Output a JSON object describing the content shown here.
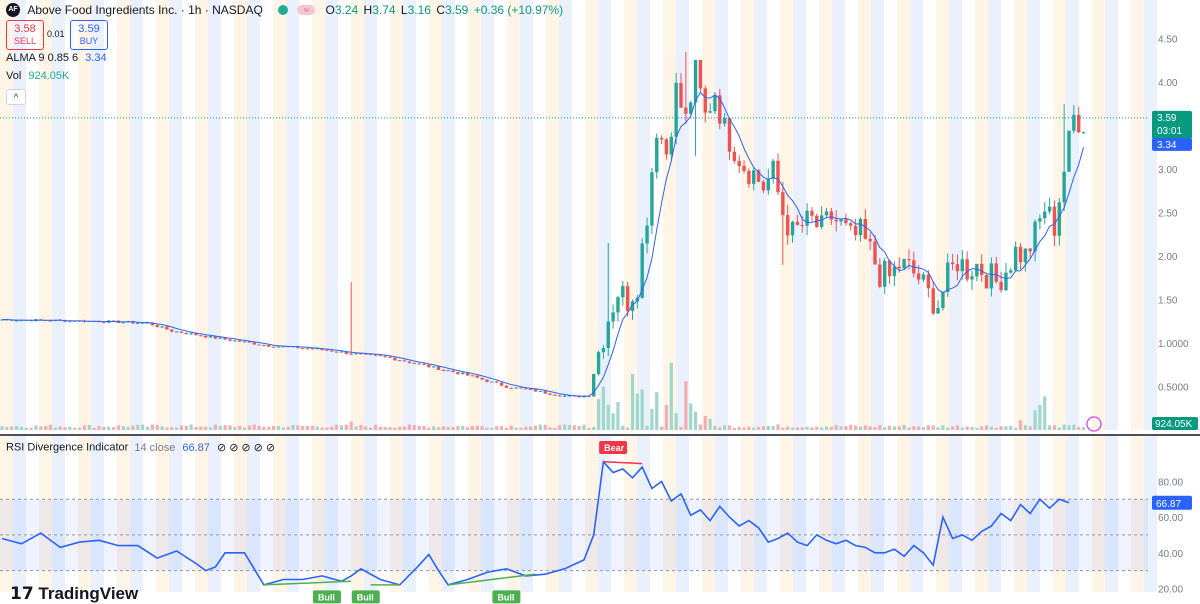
{
  "header": {
    "symbol_icon": "AF",
    "title": "Above Food Ingredients Inc. · 1h · NASDAQ",
    "ohlc": [
      {
        "label": "O",
        "value": "3.24"
      },
      {
        "label": "H",
        "value": "3.74"
      },
      {
        "label": "L",
        "value": "3.16"
      },
      {
        "label": "C",
        "value": "3.59"
      }
    ],
    "change": "+0.36 (+10.97%)"
  },
  "trade": {
    "sell_price": "3.58",
    "sell_label": "SELL",
    "spread": "0.01",
    "buy_price": "3.59",
    "buy_label": "BUY"
  },
  "indicators": {
    "alma_label": "ALMA 9 0.85 6",
    "alma_value": "3.34",
    "vol_label": "Vol",
    "vol_value": "924.05K",
    "rsi_label": "RSI Divergence Indicator",
    "rsi_params": "14 close",
    "rsi_value": "66.87"
  },
  "collapse_glyph": "^",
  "brand": "TradingView",
  "colors": {
    "up": "#26a69a",
    "down": "#ef5350",
    "alma": "#2962ff",
    "rsi": "#2962ff",
    "bull": "#4caf50",
    "bear": "#f23645"
  },
  "chart_data": [
    {
      "type": "candlestick",
      "title": "Above Food Ingredients Inc. · 1h · NASDAQ",
      "y_ticks": [
        "4.50",
        "4.00",
        "3.50",
        "3.00",
        "2.50",
        "2.00",
        "1.50",
        "1.0000",
        "0.5000"
      ],
      "ylim": [
        0.0,
        4.6
      ],
      "last_price": "3.59",
      "countdown": "03:01",
      "alma_last": "3.34",
      "volume_label": "924.05K",
      "trend": [
        [
          0,
          1.27
        ],
        [
          10,
          1.26
        ],
        [
          20,
          1.25
        ],
        [
          30,
          1.23
        ],
        [
          35,
          1.14
        ],
        [
          45,
          1.05
        ],
        [
          55,
          0.97
        ],
        [
          65,
          0.93
        ],
        [
          72,
          0.88
        ],
        [
          80,
          0.83
        ],
        [
          88,
          0.73
        ],
        [
          96,
          0.63
        ],
        [
          104,
          0.5
        ],
        [
          110,
          0.45
        ],
        [
          115,
          0.4
        ],
        [
          118,
          0.38
        ],
        [
          121,
          0.4
        ],
        [
          123,
          0.9
        ],
        [
          125,
          1.3
        ],
        [
          127,
          1.6
        ],
        [
          129,
          1.5
        ],
        [
          131,
          1.7
        ],
        [
          133,
          2.5
        ],
        [
          135,
          3.5
        ],
        [
          137,
          3.2
        ],
        [
          139,
          3.9
        ],
        [
          141,
          3.55
        ],
        [
          143,
          4.1
        ],
        [
          145,
          3.6
        ],
        [
          147,
          3.9
        ],
        [
          149,
          3.45
        ],
        [
          151,
          3.25
        ],
        [
          153,
          3.05
        ],
        [
          155,
          2.95
        ],
        [
          157,
          2.8
        ],
        [
          159,
          2.95
        ],
        [
          161,
          2.5
        ],
        [
          163,
          2.25
        ],
        [
          165,
          2.35
        ],
        [
          167,
          2.4
        ],
        [
          169,
          2.3
        ],
        [
          171,
          2.45
        ],
        [
          173,
          2.35
        ],
        [
          175,
          2.2
        ],
        [
          177,
          2.25
        ],
        [
          179,
          2.05
        ],
        [
          181,
          1.8
        ],
        [
          183,
          1.75
        ],
        [
          185,
          1.9
        ],
        [
          187,
          1.85
        ],
        [
          189,
          1.75
        ],
        [
          191,
          1.55
        ],
        [
          193,
          1.45
        ],
        [
          195,
          1.75
        ],
        [
          197,
          1.95
        ],
        [
          199,
          1.85
        ],
        [
          201,
          1.9
        ],
        [
          203,
          1.8
        ],
        [
          205,
          1.7
        ],
        [
          207,
          1.85
        ],
        [
          209,
          2.05
        ],
        [
          211,
          2.0
        ],
        [
          213,
          2.25
        ],
        [
          215,
          2.55
        ],
        [
          217,
          2.35
        ],
        [
          219,
          3.0
        ],
        [
          221,
          3.6
        ],
        [
          223,
          3.55
        ]
      ],
      "spikes": [
        [
          72,
          1.7
        ],
        [
          125,
          2.15
        ],
        [
          141,
          4.35
        ],
        [
          143,
          3.15
        ],
        [
          161,
          1.9
        ],
        [
          193,
          1.35
        ],
        [
          219,
          3.75
        ]
      ],
      "volume": [
        [
          72,
          0.6
        ],
        [
          123,
          2.2
        ],
        [
          124,
          3.1
        ],
        [
          125,
          1.8
        ],
        [
          126,
          1.2
        ],
        [
          127,
          2.0
        ],
        [
          130,
          4.0
        ],
        [
          131,
          2.6
        ],
        [
          132,
          2.9
        ],
        [
          134,
          1.5
        ],
        [
          135,
          2.7
        ],
        [
          137,
          1.8
        ],
        [
          138,
          4.8
        ],
        [
          139,
          1.2
        ],
        [
          141,
          3.5
        ],
        [
          142,
          1.9
        ],
        [
          143,
          1.3
        ],
        [
          145,
          1.0
        ],
        [
          146,
          0.8
        ],
        [
          210,
          0.7
        ],
        [
          213,
          1.4
        ],
        [
          214,
          1.8
        ],
        [
          215,
          2.4
        ]
      ]
    },
    {
      "type": "line",
      "title": "RSI Divergence Indicator 14 close",
      "y_ticks": [
        "80.00",
        "60.00",
        "40.00",
        "20.00"
      ],
      "ylim": [
        18,
        92
      ],
      "bands": [
        70,
        50,
        30
      ],
      "last_value": "66.87",
      "rsi": [
        [
          0,
          48
        ],
        [
          4,
          45
        ],
        [
          8,
          51
        ],
        [
          12,
          43
        ],
        [
          16,
          46
        ],
        [
          20,
          47
        ],
        [
          24,
          44
        ],
        [
          28,
          44
        ],
        [
          32,
          37
        ],
        [
          36,
          41
        ],
        [
          40,
          34
        ],
        [
          42,
          30
        ],
        [
          44,
          32
        ],
        [
          46,
          40
        ],
        [
          50,
          40
        ],
        [
          54,
          22
        ],
        [
          58,
          25
        ],
        [
          62,
          25
        ],
        [
          66,
          27
        ],
        [
          70,
          24
        ],
        [
          72,
          27
        ],
        [
          74,
          31
        ],
        [
          78,
          25
        ],
        [
          82,
          22
        ],
        [
          86,
          33
        ],
        [
          88,
          39
        ],
        [
          90,
          30
        ],
        [
          92,
          22
        ],
        [
          96,
          25
        ],
        [
          100,
          29
        ],
        [
          104,
          31
        ],
        [
          108,
          27
        ],
        [
          112,
          28
        ],
        [
          116,
          31
        ],
        [
          120,
          36
        ],
        [
          122,
          50
        ],
        [
          124,
          91
        ],
        [
          126,
          85
        ],
        [
          128,
          87
        ],
        [
          130,
          82
        ],
        [
          132,
          88
        ],
        [
          134,
          76
        ],
        [
          136,
          80
        ],
        [
          138,
          69
        ],
        [
          140,
          73
        ],
        [
          142,
          61
        ],
        [
          144,
          64
        ],
        [
          146,
          58
        ],
        [
          148,
          66
        ],
        [
          150,
          60
        ],
        [
          152,
          55
        ],
        [
          154,
          58
        ],
        [
          156,
          54
        ],
        [
          158,
          46
        ],
        [
          160,
          48
        ],
        [
          162,
          51
        ],
        [
          164,
          46
        ],
        [
          166,
          44
        ],
        [
          168,
          50
        ],
        [
          170,
          47
        ],
        [
          172,
          45
        ],
        [
          174,
          47
        ],
        [
          176,
          44
        ],
        [
          178,
          43
        ],
        [
          180,
          40
        ],
        [
          182,
          40
        ],
        [
          184,
          42
        ],
        [
          186,
          38
        ],
        [
          188,
          44
        ],
        [
          190,
          40
        ],
        [
          192,
          33
        ],
        [
          194,
          60
        ],
        [
          196,
          48
        ],
        [
          198,
          50
        ],
        [
          200,
          47
        ],
        [
          202,
          52
        ],
        [
          204,
          55
        ],
        [
          206,
          62
        ],
        [
          208,
          58
        ],
        [
          210,
          67
        ],
        [
          212,
          62
        ],
        [
          214,
          70
        ],
        [
          216,
          65
        ],
        [
          218,
          70
        ],
        [
          220,
          68
        ]
      ],
      "signals": [
        {
          "label": "Bear",
          "at": 126
        },
        {
          "label": "Bull",
          "at": 67
        },
        {
          "label": "Bull",
          "at": 75
        },
        {
          "label": "Bull",
          "at": 104
        }
      ]
    }
  ]
}
